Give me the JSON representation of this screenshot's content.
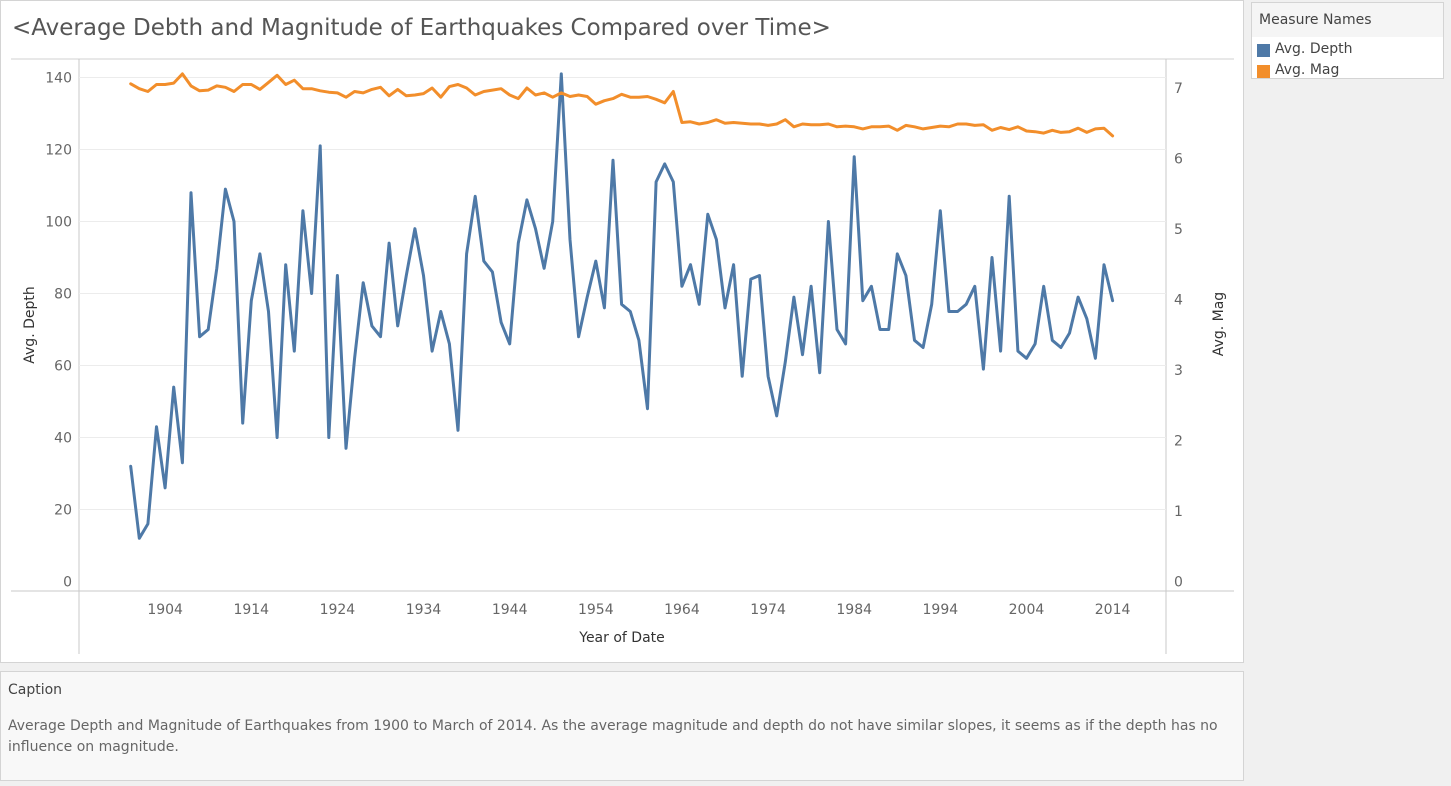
{
  "worksheet": {
    "title": "<Average Debth and Magnitude of Earthquakes Compared over Time>"
  },
  "legend": {
    "title": "Measure Names",
    "items": [
      {
        "label": "Avg. Depth",
        "color": "#4e79a7"
      },
      {
        "label": "Avg. Mag",
        "color": "#f28e2b"
      }
    ]
  },
  "caption": {
    "title": "Caption",
    "text": "Average Depth and Magnitude of Earthquakes from 1900 to March of 2014. As the average magnitude and depth do not have similar slopes, it seems as if the depth has no influence on magnitude."
  },
  "chart_data": {
    "type": "line",
    "title": "<Average Debth and Magnitude of Earthquakes Compared over Time>",
    "xlabel": "Year of Date",
    "ylabel": "Avg. Depth",
    "ylabel_right": "Avg. Mag",
    "x_ticks": [
      1904,
      1914,
      1924,
      1934,
      1944,
      1954,
      1964,
      1974,
      1984,
      1994,
      2004,
      2014
    ],
    "y_ticks_left": [
      0,
      20,
      40,
      60,
      80,
      100,
      120,
      140
    ],
    "y_ticks_right": [
      0,
      1,
      2,
      3,
      4,
      5,
      6,
      7
    ],
    "xlim": [
      1894,
      2020
    ],
    "ylim_left": [
      0,
      145
    ],
    "ylim_right": [
      0,
      7.4
    ],
    "grid": true,
    "legend_position": "right",
    "x": [
      1900,
      1901,
      1902,
      1903,
      1904,
      1905,
      1906,
      1907,
      1908,
      1909,
      1910,
      1911,
      1912,
      1913,
      1914,
      1915,
      1916,
      1917,
      1918,
      1919,
      1920,
      1921,
      1922,
      1923,
      1924,
      1925,
      1926,
      1927,
      1928,
      1929,
      1930,
      1931,
      1932,
      1933,
      1934,
      1935,
      1936,
      1937,
      1938,
      1939,
      1940,
      1941,
      1942,
      1943,
      1944,
      1945,
      1946,
      1947,
      1948,
      1949,
      1950,
      1951,
      1952,
      1953,
      1954,
      1955,
      1956,
      1957,
      1958,
      1959,
      1960,
      1961,
      1962,
      1963,
      1964,
      1965,
      1966,
      1967,
      1968,
      1969,
      1970,
      1971,
      1972,
      1973,
      1974,
      1975,
      1976,
      1977,
      1978,
      1979,
      1980,
      1981,
      1982,
      1983,
      1984,
      1985,
      1986,
      1987,
      1988,
      1989,
      1990,
      1991,
      1992,
      1993,
      1994,
      1995,
      1996,
      1997,
      1998,
      1999,
      2000,
      2001,
      2002,
      2003,
      2004,
      2005,
      2006,
      2007,
      2008,
      2009,
      2010,
      2011,
      2012,
      2013,
      2014
    ],
    "series": [
      {
        "name": "Avg. Depth",
        "axis": "left",
        "color": "#4e79a7",
        "values": [
          32,
          12,
          16,
          43,
          26,
          54,
          33,
          108,
          68,
          70,
          87,
          109,
          100,
          44,
          78,
          91,
          75,
          40,
          88,
          64,
          103,
          80,
          121,
          40,
          85,
          37,
          62,
          83,
          71,
          68,
          94,
          71,
          85,
          98,
          85,
          64,
          75,
          66,
          42,
          91,
          107,
          89,
          86,
          72,
          66,
          94,
          106,
          98,
          87,
          100,
          141,
          95,
          68,
          79,
          89,
          76,
          117,
          77,
          75,
          67,
          48,
          111,
          116,
          111,
          82,
          88,
          77,
          102,
          95,
          76,
          88,
          57,
          84,
          85,
          57,
          46,
          61,
          79,
          63,
          82,
          58,
          100,
          70,
          66,
          118,
          78,
          82,
          70,
          70,
          91,
          85,
          67,
          65,
          77,
          103,
          75,
          75,
          77,
          82,
          59,
          90,
          64,
          107,
          64,
          62,
          66,
          82,
          67,
          65,
          69,
          79,
          73,
          62,
          88,
          78
        ]
      },
      {
        "name": "Avg. Mag",
        "axis": "right",
        "color": "#f28e2b",
        "values": [
          7.06,
          6.99,
          6.95,
          7.05,
          7.05,
          7.07,
          7.2,
          7.03,
          6.96,
          6.97,
          7.03,
          7.01,
          6.95,
          7.05,
          7.05,
          6.98,
          7.08,
          7.18,
          7.05,
          7.11,
          6.99,
          6.99,
          6.96,
          6.94,
          6.93,
          6.87,
          6.95,
          6.93,
          6.98,
          7.01,
          6.89,
          6.98,
          6.89,
          6.9,
          6.92,
          7.0,
          6.87,
          7.02,
          7.05,
          7.0,
          6.9,
          6.95,
          6.97,
          6.99,
          6.9,
          6.85,
          7.0,
          6.9,
          6.93,
          6.87,
          6.93,
          6.88,
          6.9,
          6.88,
          6.77,
          6.82,
          6.85,
          6.91,
          6.87,
          6.87,
          6.88,
          6.84,
          6.79,
          6.95,
          6.51,
          6.52,
          6.49,
          6.51,
          6.55,
          6.5,
          6.51,
          6.5,
          6.49,
          6.49,
          6.47,
          6.49,
          6.55,
          6.45,
          6.49,
          6.48,
          6.48,
          6.49,
          6.45,
          6.46,
          6.45,
          6.42,
          6.45,
          6.45,
          6.46,
          6.4,
          6.47,
          6.45,
          6.42,
          6.44,
          6.46,
          6.45,
          6.49,
          6.49,
          6.47,
          6.48,
          6.4,
          6.44,
          6.41,
          6.45,
          6.39,
          6.38,
          6.36,
          6.4,
          6.37,
          6.38,
          6.43,
          6.37,
          6.42,
          6.43,
          6.32
        ]
      }
    ]
  }
}
